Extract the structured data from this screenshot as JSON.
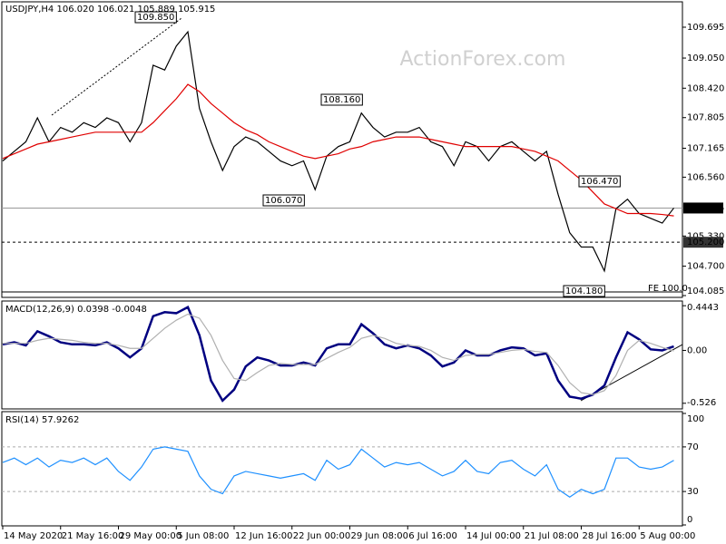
{
  "chart_data": [
    {
      "type": "line",
      "title": "USDJPY,H4  106.020 106.021 105.889 105.915",
      "watermark": "ActionForex.com",
      "series": [
        {
          "color": "#000000",
          "values": [
            106.9,
            107.1,
            107.3,
            107.8,
            107.3,
            107.6,
            107.5,
            107.7,
            107.6,
            107.8,
            107.7,
            107.3,
            107.7,
            108.9,
            108.8,
            109.3,
            109.6,
            108.0,
            107.3,
            106.7,
            107.2,
            107.4,
            107.3,
            107.1,
            106.9,
            106.8,
            106.9,
            106.3,
            107.0,
            107.2,
            107.3,
            107.9,
            107.6,
            107.4,
            107.5,
            107.5,
            107.6,
            107.3,
            107.2,
            106.8,
            107.3,
            107.2,
            106.9,
            107.2,
            107.3,
            107.1,
            106.9,
            107.1,
            106.2,
            105.4,
            105.1,
            105.1,
            104.6,
            105.9,
            106.1,
            105.8,
            105.7,
            105.6,
            105.915
          ]
        },
        {
          "color": "#e00000",
          "values": [
            106.95,
            107.05,
            107.15,
            107.25,
            107.3,
            107.35,
            107.4,
            107.45,
            107.5,
            107.5,
            107.5,
            107.5,
            107.5,
            107.7,
            107.95,
            108.2,
            108.5,
            108.35,
            108.1,
            107.9,
            107.7,
            107.55,
            107.45,
            107.3,
            107.2,
            107.1,
            107.0,
            106.95,
            107.0,
            107.05,
            107.15,
            107.2,
            107.3,
            107.35,
            107.4,
            107.4,
            107.4,
            107.35,
            107.3,
            107.25,
            107.2,
            107.2,
            107.2,
            107.2,
            107.2,
            107.15,
            107.1,
            107.0,
            106.9,
            106.7,
            106.5,
            106.25,
            106.0,
            105.9,
            105.8,
            105.8,
            105.8,
            105.78,
            105.75
          ]
        }
      ],
      "ylim": [
        104.066,
        110.207
      ],
      "yticks": [
        109.695,
        {
          "value": 109.05,
          "label": "109.050"
        },
        {
          "value": 108.42,
          "label": "108.420"
        },
        107.805,
        107.165,
        {
          "value": 106.56,
          "label": "106.560"
        },
        {
          "value": 105.33,
          "label": "105.330"
        },
        {
          "value": 104.7,
          "label": "104.700"
        },
        104.085
      ],
      "levels": [
        105.915,
        {
          "value": 105.2,
          "label": "105.200"
        }
      ],
      "annotations": [
        "109.850",
        "108.160",
        "106.070",
        "106.470",
        "104.180",
        "FE 100.0"
      ]
    },
    {
      "type": "line",
      "title": "MACD(12,26,9) 0.0398 -0.0048",
      "series": [
        {
          "color": "#000080",
          "values": [
            0.06,
            0.08,
            0.05,
            0.19,
            0.14,
            0.08,
            0.06,
            0.06,
            0.05,
            0.08,
            0.02,
            -0.07,
            0.02,
            0.34,
            0.38,
            0.37,
            0.43,
            0.15,
            -0.3,
            -0.5,
            -0.39,
            -0.16,
            -0.07,
            -0.1,
            -0.15,
            -0.15,
            -0.12,
            -0.15,
            0.02,
            0.06,
            0.06,
            0.26,
            0.17,
            0.06,
            0.02,
            0.05,
            0.02,
            -0.05,
            -0.16,
            -0.12,
            0,
            -0.05,
            -0.05,
            0,
            0.03,
            0.02,
            -0.05,
            -0.03,
            -0.3,
            -0.46,
            -0.48,
            -0.44,
            -0.35,
            -0.07,
            0.18,
            0.11,
            0.01,
            0,
            0.04
          ]
        },
        {
          "color": "#b0b0b0",
          "values": [
            0.07,
            0.07,
            0.07,
            0.1,
            0.12,
            0.11,
            0.1,
            0.08,
            0.07,
            0.07,
            0.05,
            0.02,
            0.02,
            0.12,
            0.22,
            0.3,
            0.36,
            0.32,
            0.15,
            -0.1,
            -0.28,
            -0.3,
            -0.22,
            -0.15,
            -0.13,
            -0.14,
            -0.14,
            -0.14,
            -0.08,
            -0.02,
            0.03,
            0.12,
            0.15,
            0.12,
            0.07,
            0.05,
            0.04,
            0,
            -0.07,
            -0.1,
            -0.05,
            -0.04,
            -0.04,
            -0.02,
            0,
            0.01,
            -0.01,
            -0.02,
            -0.15,
            -0.32,
            -0.42,
            -0.44,
            -0.4,
            -0.25,
            0,
            0.1,
            0.07,
            0.03,
            -0.005
          ]
        }
      ],
      "ylim": [
        -0.573,
        0.482
      ],
      "yticks": [
        0.4443,
        {
          "value": 0,
          "label": "0.00"
        },
        -0.526
      ]
    },
    {
      "type": "line",
      "title": "RSI(14) 57.9262",
      "categories": [
        "14 May 2020",
        null,
        null,
        null,
        null,
        "21 May 16:00",
        null,
        null,
        null,
        null,
        "29 May 00:00",
        null,
        null,
        null,
        null,
        "5 Jun 08:00",
        null,
        null,
        null,
        null,
        "12 Jun 16:00",
        null,
        null,
        null,
        null,
        "22 Jun 00:00",
        null,
        null,
        null,
        null,
        "29 Jun 08:00",
        null,
        null,
        null,
        null,
        "6 Jul 16:00",
        null,
        null,
        null,
        null,
        "14 Jul 00:00",
        null,
        null,
        null,
        null,
        "21 Jul 08:00",
        null,
        null,
        null,
        null,
        "28 Jul 16:00",
        null,
        null,
        null,
        null,
        "5 Aug 00:00",
        null,
        null,
        null
      ],
      "series": [
        {
          "color": "#1e90ff",
          "values": [
            56,
            60,
            54,
            60,
            52,
            58,
            56,
            60,
            54,
            60,
            48,
            40,
            52,
            68,
            70,
            68,
            66,
            44,
            32,
            28,
            44,
            48,
            46,
            44,
            42,
            44,
            46,
            40,
            58,
            50,
            54,
            68,
            60,
            52,
            56,
            54,
            56,
            50,
            44,
            48,
            58,
            48,
            46,
            56,
            58,
            50,
            44,
            54,
            32,
            25,
            32,
            28,
            32,
            60,
            60,
            52,
            50,
            52,
            57.9262
          ]
        }
      ],
      "ylim": [
        0,
        100
      ],
      "yticks": [
        100,
        70,
        30,
        0
      ],
      "levels": [
        70,
        30
      ]
    }
  ]
}
